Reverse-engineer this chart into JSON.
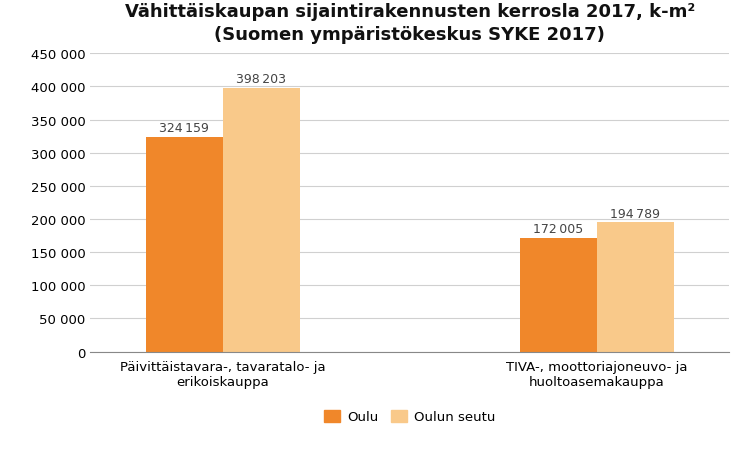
{
  "title_line1": "Vähittäiskaupan sijaintirakennusten kerrosla 2017, k-m²",
  "title_line2": "(Suomen ympäristökeskus SYKE 2017)",
  "categories": [
    "Päivittäistavara-, tavaratalo- ja\nerikoiskauppa",
    "TIVA-, moottoriajoneuvo- ja\nhuoltoasemakauppa"
  ],
  "series": {
    "Oulu": [
      324159,
      172005
    ],
    "Oulun seutu": [
      398203,
      194789
    ]
  },
  "bar_colors": {
    "Oulu": "#F0872A",
    "Oulun seutu": "#F9C98A"
  },
  "ylim": [
    0,
    450000
  ],
  "yticks": [
    0,
    50000,
    100000,
    150000,
    200000,
    250000,
    300000,
    350000,
    400000,
    450000
  ],
  "ytick_labels": [
    "0",
    "50 000",
    "100 000",
    "150 000",
    "200 000",
    "250 000",
    "300 000",
    "350 000",
    "400 000",
    "450 000"
  ],
  "bar_width": 0.32,
  "background_color": "#ffffff",
  "grid_color": "#d0d0d0",
  "label_fontsize": 9.5,
  "title_fontsize": 13,
  "subtitle_fontsize": 11,
  "value_label_fontsize": 9,
  "group_centers": [
    1.0,
    2.55
  ]
}
